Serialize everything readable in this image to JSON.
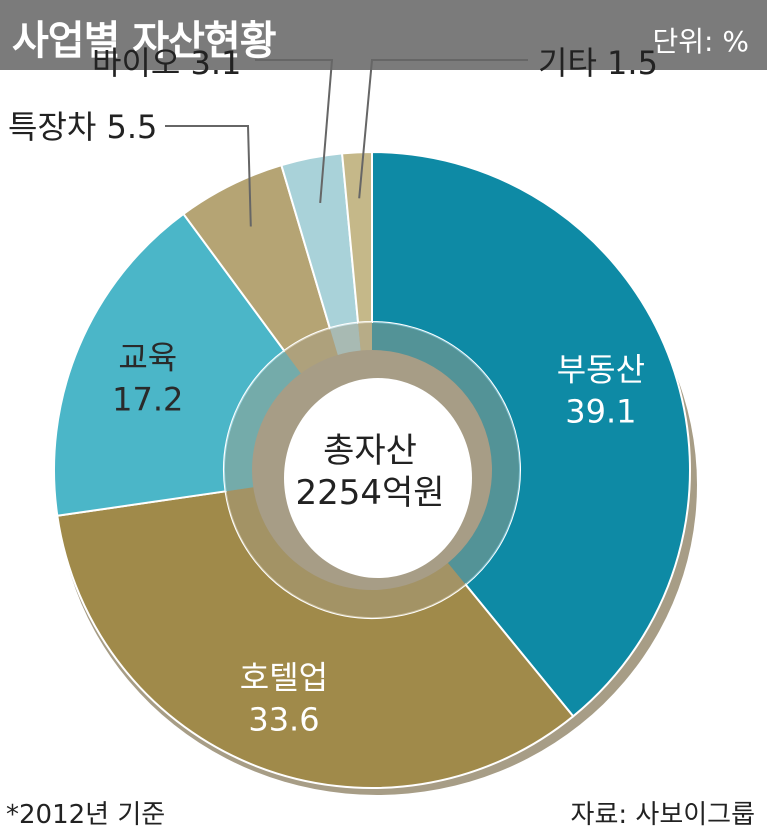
{
  "header": {
    "title": "사업별 자산현황",
    "unit": "단위: %"
  },
  "center": {
    "line1": "총자산",
    "line2": "2254억원"
  },
  "footer": {
    "note": "*2012년 기준",
    "source": "자료: 사보이그룹"
  },
  "chart_data": {
    "type": "pie",
    "variant": "donut",
    "title": "사업별 자산현황",
    "unit": "%",
    "slices": [
      {
        "name": "부동산",
        "value": 39.1,
        "color": "#0e8aa5",
        "label_style": "inside",
        "label_color": "#ffffff"
      },
      {
        "name": "호텔업",
        "value": 33.6,
        "color": "#a08a4a",
        "label_style": "inside",
        "label_color": "#ffffff"
      },
      {
        "name": "교육",
        "value": 17.2,
        "color": "#4bb6c8",
        "label_style": "inside",
        "label_color": "#2a2a2a"
      },
      {
        "name": "특장차",
        "value": 5.5,
        "color": "#b5a474",
        "label_style": "callout",
        "label_color": "#222222"
      },
      {
        "name": "바이오",
        "value": 3.1,
        "color": "#a9d2d9",
        "label_style": "callout",
        "label_color": "#222222"
      },
      {
        "name": "기타",
        "value": 1.5,
        "color": "#c5b889",
        "label_style": "callout",
        "label_color": "#222222"
      }
    ]
  }
}
